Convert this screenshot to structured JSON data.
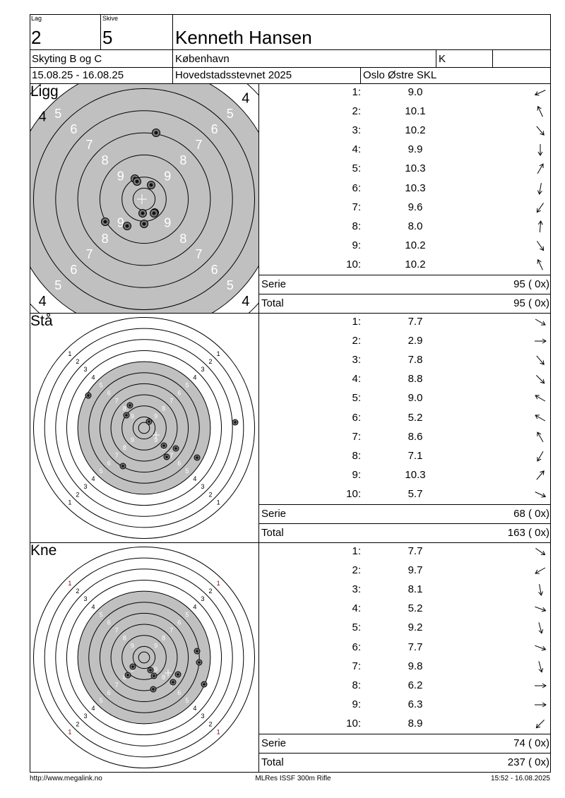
{
  "header": {
    "lag_label": "Lag",
    "lag_value": "2",
    "skive_label": "Skive",
    "skive_value": "5",
    "name": "Kenneth Hansen",
    "class": "Skyting B og C",
    "city": "København",
    "category": "K",
    "extra": "",
    "dates": "15.08.25 - 16.08.25",
    "event": "Hovedstadsstevnet 2025",
    "club": "Oslo Østre SKL"
  },
  "sections": [
    {
      "name": "Ligg",
      "shots": [
        {
          "n": "1:",
          "v": "9.0",
          "dir": 245
        },
        {
          "n": "2:",
          "v": "10.1",
          "dir": 335
        },
        {
          "n": "3:",
          "v": "10.2",
          "dir": 140
        },
        {
          "n": "4:",
          "v": "9.9",
          "dir": 180
        },
        {
          "n": "5:",
          "v": "10.3",
          "dir": 30
        },
        {
          "n": "6:",
          "v": "10.3",
          "dir": 190
        },
        {
          "n": "7:",
          "v": "9.6",
          "dir": 215
        },
        {
          "n": "8:",
          "v": "8.0",
          "dir": 5
        },
        {
          "n": "9:",
          "v": "10.2",
          "dir": 145
        },
        {
          "n": "10:",
          "v": "10.2",
          "dir": 335
        }
      ],
      "serie_label": "Serie",
      "serie_value": "95 ( 0x)",
      "total_label": "Total",
      "total_value": "95 ( 0x)"
    },
    {
      "name": "Stå",
      "shots": [
        {
          "n": "1:",
          "v": "7.7",
          "dir": 120
        },
        {
          "n": "2:",
          "v": "2.9",
          "dir": 90
        },
        {
          "n": "3:",
          "v": "7.8",
          "dir": 140
        },
        {
          "n": "4:",
          "v": "8.8",
          "dir": 135
        },
        {
          "n": "5:",
          "v": "9.0",
          "dir": 300
        },
        {
          "n": "6:",
          "v": "5.2",
          "dir": 300
        },
        {
          "n": "7:",
          "v": "8.6",
          "dir": 330
        },
        {
          "n": "8:",
          "v": "7.1",
          "dir": 210
        },
        {
          "n": "9:",
          "v": "10.3",
          "dir": 40
        },
        {
          "n": "10:",
          "v": "5.7",
          "dir": 115
        }
      ],
      "serie_label": "Serie",
      "serie_value": "68 ( 0x)",
      "total_label": "Total",
      "total_value": "163 ( 0x)"
    },
    {
      "name": "Kne",
      "shots": [
        {
          "n": "1:",
          "v": "7.7",
          "dir": 125
        },
        {
          "n": "2:",
          "v": "9.7",
          "dir": 240
        },
        {
          "n": "3:",
          "v": "8.1",
          "dir": 170
        },
        {
          "n": "4:",
          "v": "5.2",
          "dir": 110
        },
        {
          "n": "5:",
          "v": "9.2",
          "dir": 165
        },
        {
          "n": "6:",
          "v": "7.7",
          "dir": 110
        },
        {
          "n": "7:",
          "v": "9.8",
          "dir": 165
        },
        {
          "n": "8:",
          "v": "6.2",
          "dir": 90
        },
        {
          "n": "9:",
          "v": "6.3",
          "dir": 90
        },
        {
          "n": "10:",
          "v": "8.9",
          "dir": 225
        }
      ],
      "serie_label": "Serie",
      "serie_value": "74 ( 0x)",
      "total_label": "Total",
      "total_value": "237 ( 0x)"
    }
  ],
  "target_colors": {
    "black_area": "#c0c0c0",
    "ring": "#000000",
    "label_inner": "#ffffff",
    "label_outer": "#000000",
    "ring1_label": "#800000"
  },
  "footer": {
    "left": "http://www.megalink.no",
    "center": "MLRes ISSF 300m Rifle",
    "right": "15:52 - 16.08.2025"
  }
}
